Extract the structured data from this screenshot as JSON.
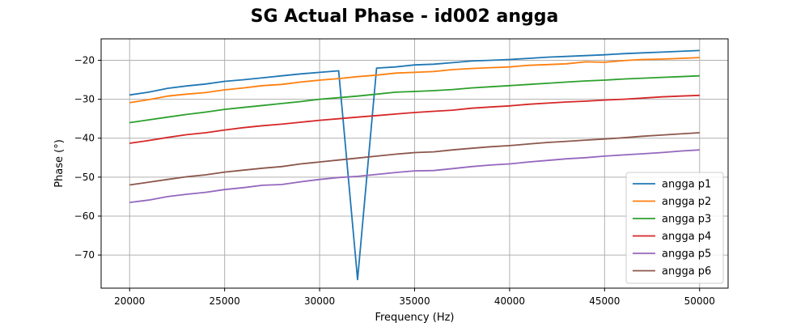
{
  "chart_data": {
    "type": "line",
    "title": "SG Actual Phase - id002 angga",
    "xlabel": "Frequency (Hz)",
    "ylabel": "Phase (°)",
    "xlim": [
      18500,
      51500
    ],
    "ylim": [
      -78.5,
      -14.5
    ],
    "xticks": [
      20000,
      25000,
      30000,
      35000,
      40000,
      45000,
      50000
    ],
    "yticks": [
      -70,
      -60,
      -50,
      -40,
      -30,
      -20
    ],
    "grid": true,
    "legend_position": "lower-right",
    "x": [
      20000,
      21000,
      22000,
      23000,
      24000,
      25000,
      26000,
      27000,
      28000,
      29000,
      30000,
      31000,
      32000,
      33000,
      34000,
      35000,
      36000,
      37000,
      38000,
      39000,
      40000,
      41000,
      42000,
      43000,
      44000,
      45000,
      46000,
      47000,
      48000,
      49000,
      50000
    ],
    "series": [
      {
        "name": "angga p1",
        "color": "#1f77b4",
        "values": [
          -28.9,
          -28.2,
          -27.2,
          -26.6,
          -26.1,
          -25.4,
          -25.0,
          -24.5,
          -24.0,
          -23.5,
          -23.1,
          -22.7,
          -76.3,
          -22.0,
          -21.7,
          -21.2,
          -21.0,
          -20.6,
          -20.2,
          -20.0,
          -19.8,
          -19.5,
          -19.2,
          -19.0,
          -18.8,
          -18.6,
          -18.3,
          -18.1,
          -17.9,
          -17.7,
          -17.5
        ]
      },
      {
        "name": "angga p2",
        "color": "#ff7f0e",
        "values": [
          -30.9,
          -30.1,
          -29.2,
          -28.7,
          -28.3,
          -27.6,
          -27.1,
          -26.5,
          -26.2,
          -25.6,
          -25.1,
          -24.7,
          -24.2,
          -23.8,
          -23.3,
          -23.1,
          -22.9,
          -22.4,
          -22.1,
          -21.9,
          -21.7,
          -21.3,
          -21.1,
          -20.9,
          -20.4,
          -20.5,
          -20.1,
          -19.8,
          -19.7,
          -19.5,
          -19.3
        ]
      },
      {
        "name": "angga p3",
        "color": "#2ca02c",
        "values": [
          -36.0,
          -35.3,
          -34.6,
          -33.9,
          -33.3,
          -32.6,
          -32.1,
          -31.6,
          -31.1,
          -30.6,
          -30.0,
          -29.6,
          -29.2,
          -28.7,
          -28.2,
          -28.0,
          -27.8,
          -27.5,
          -27.1,
          -26.8,
          -26.5,
          -26.2,
          -25.9,
          -25.6,
          -25.3,
          -25.1,
          -24.8,
          -24.6,
          -24.4,
          -24.2,
          -24.0
        ]
      },
      {
        "name": "angga p4",
        "color": "#d62728",
        "values": [
          -41.3,
          -40.6,
          -39.8,
          -39.1,
          -38.6,
          -37.9,
          -37.3,
          -36.8,
          -36.4,
          -35.9,
          -35.4,
          -35.0,
          -34.6,
          -34.2,
          -33.8,
          -33.4,
          -33.1,
          -32.8,
          -32.3,
          -32.0,
          -31.7,
          -31.3,
          -31.0,
          -30.7,
          -30.5,
          -30.2,
          -30.0,
          -29.7,
          -29.4,
          -29.2,
          -29.0
        ]
      },
      {
        "name": "angga p5",
        "color": "#9467bd",
        "values": [
          -56.5,
          -55.9,
          -55.0,
          -54.4,
          -53.9,
          -53.2,
          -52.7,
          -52.1,
          -51.9,
          -51.2,
          -50.6,
          -50.1,
          -49.8,
          -49.3,
          -48.8,
          -48.4,
          -48.3,
          -47.8,
          -47.3,
          -46.9,
          -46.6,
          -46.1,
          -45.7,
          -45.3,
          -45.0,
          -44.6,
          -44.3,
          -44.0,
          -43.7,
          -43.3,
          -43.0
        ]
      },
      {
        "name": "angga p6",
        "color": "#8c564b",
        "values": [
          -52.0,
          -51.3,
          -50.6,
          -49.9,
          -49.4,
          -48.7,
          -48.2,
          -47.7,
          -47.3,
          -46.6,
          -46.1,
          -45.6,
          -45.1,
          -44.6,
          -44.1,
          -43.7,
          -43.5,
          -43.0,
          -42.6,
          -42.2,
          -41.9,
          -41.5,
          -41.1,
          -40.8,
          -40.5,
          -40.2,
          -39.9,
          -39.5,
          -39.2,
          -38.9,
          -38.6
        ]
      }
    ]
  }
}
